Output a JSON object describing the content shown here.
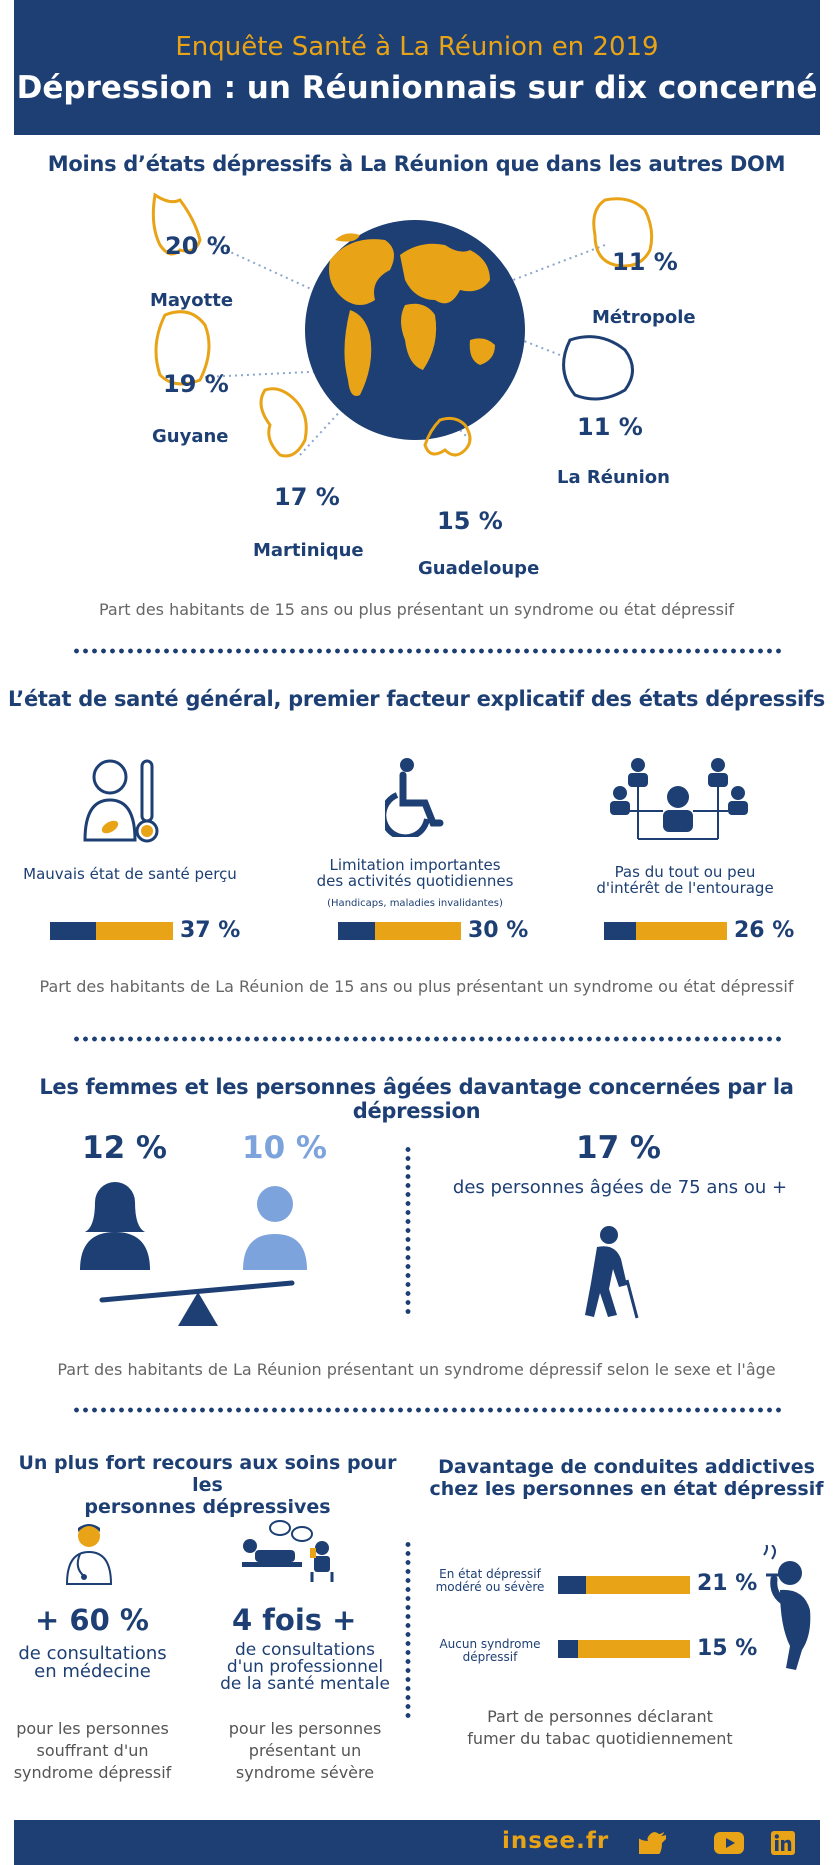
{
  "header": {
    "subtitle": "Enquête Santé à La Réunion en 2019",
    "title": "Dépression : un Réunionnais sur dix concerné"
  },
  "section1": {
    "title": "Moins d’états dépressifs à La Réunion que dans les autres DOM",
    "territories": [
      {
        "name": "Mayotte",
        "value": "20 %"
      },
      {
        "name": "Guyane",
        "value": "19 %"
      },
      {
        "name": "Martinique",
        "value": "17 %"
      },
      {
        "name": "Guadeloupe",
        "value": "15 %"
      },
      {
        "name": "La Réunion",
        "value": "11 %"
      },
      {
        "name": "Métropole",
        "value": "11 %"
      }
    ],
    "caption": "Part des habitants de 15 ans ou plus présentant un syndrome ou état dépressif"
  },
  "section2": {
    "title": "L’état de santé général, premier facteur explicatif des états dépressifs",
    "factors": [
      {
        "label": "Mauvais état de santé perçu",
        "note": "",
        "value": "37 %",
        "share": 0.37
      },
      {
        "label_line1": "Limitation importantes",
        "label_line2": "des activités quotidiennes",
        "note": "(Handicaps, maladies invalidantes)",
        "value": "30 %",
        "share": 0.3
      },
      {
        "label_line1": "Pas du tout ou peu",
        "label_line2": "d'intérêt de l'entourage",
        "note": "",
        "value": "26 %",
        "share": 0.26
      }
    ],
    "caption": "Part des habitants de La Réunion de 15 ans ou plus présentant un syndrome ou état dépressif"
  },
  "section3": {
    "title": "Les femmes et les personnes âgées davantage concernées par la dépression",
    "women": "12 %",
    "men": "10 %",
    "elderly_value": "17 %",
    "elderly_label": "des personnes âgées de 75 ans ou +",
    "caption": "Part des habitants de La Réunion présentant un syndrome dépressif selon le sexe et l'âge"
  },
  "section4": {
    "title_line1": "Un plus fort recours aux soins pour les",
    "title_line2": "personnes dépressives",
    "stat1": {
      "value": "+ 60 %",
      "line1": "de consultations",
      "line2": "en médecine",
      "desc1": "pour les personnes",
      "desc2": "souffrant d'un",
      "desc3": "syndrome dépressif"
    },
    "stat2": {
      "value": "4 fois +",
      "line1": "de consultations",
      "line2": "d'un professionnel",
      "line3": "de la santé mentale",
      "desc1": "pour les personnes",
      "desc2": "présentant un",
      "desc3": "syndrome sévère"
    }
  },
  "section5": {
    "title_line1": "Davantage de conduites addictives",
    "title_line2": "chez les personnes en état dépressif",
    "rows": [
      {
        "label_line1": "En état dépressif",
        "label_line2": "modéré ou sévère",
        "value": "21 %",
        "share": 0.21
      },
      {
        "label_line1": "Aucun syndrome",
        "label_line2": "dépressif",
        "value": "15 %",
        "share": 0.15
      }
    ],
    "caption_line1": "Part de personnes déclarant",
    "caption_line2": "fumer du tabac quotidiennement"
  },
  "footer": {
    "site": "insee.fr",
    "icons": [
      "twitter-icon",
      "youtube-icon",
      "linkedin-icon"
    ]
  },
  "colors": {
    "navy": "#1d3f73",
    "gold": "#e8a317",
    "light_blue": "#7da3dc"
  }
}
